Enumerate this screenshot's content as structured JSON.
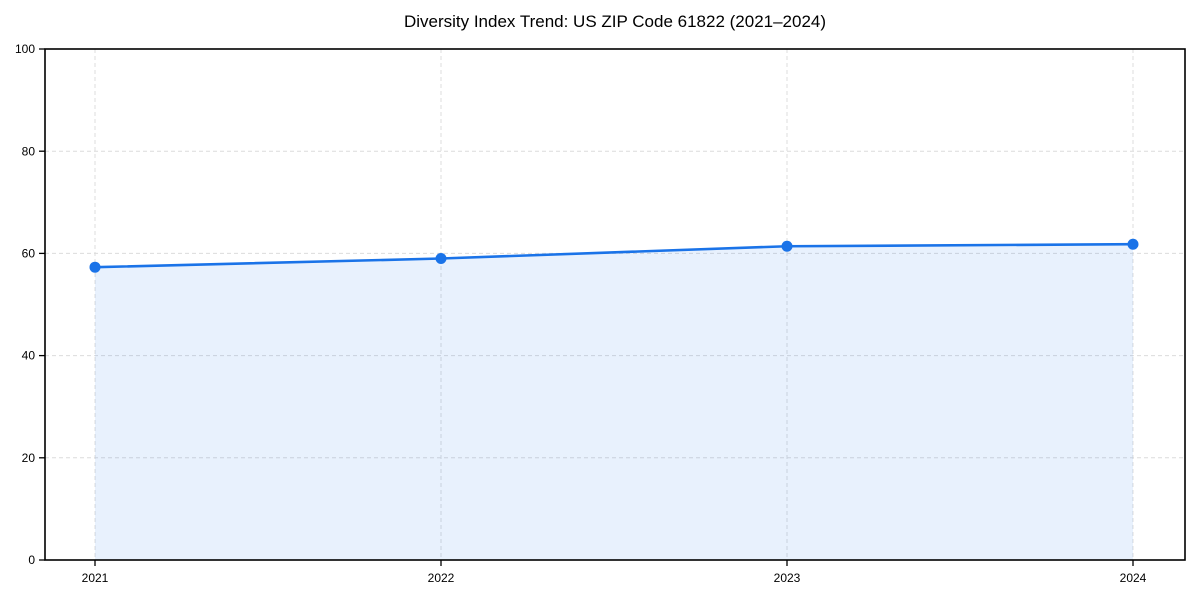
{
  "chart_data": {
    "type": "area",
    "title": "Diversity Index Trend: US ZIP Code 61822 (2021–2024)",
    "categories": [
      "2021",
      "2022",
      "2023",
      "2024"
    ],
    "series": [
      {
        "name": "Diversity Index",
        "values": [
          57.3,
          59.0,
          61.4,
          61.8
        ]
      }
    ],
    "xlabel": "",
    "ylabel": "",
    "ylim": [
      0,
      100
    ],
    "yticks": [
      0,
      20,
      40,
      60,
      80,
      100
    ],
    "grid": true,
    "grid_style": "dashed",
    "legend_position": "none",
    "marker": "circle",
    "colors": {
      "line": "#1a73e8",
      "marker": "#1a73e8",
      "fill": "#1a73e8",
      "fill_opacity": 0.1,
      "grid": "#dcdcdc",
      "spine": "#000000",
      "tick_text": "#000000",
      "background": "#ffffff"
    }
  }
}
